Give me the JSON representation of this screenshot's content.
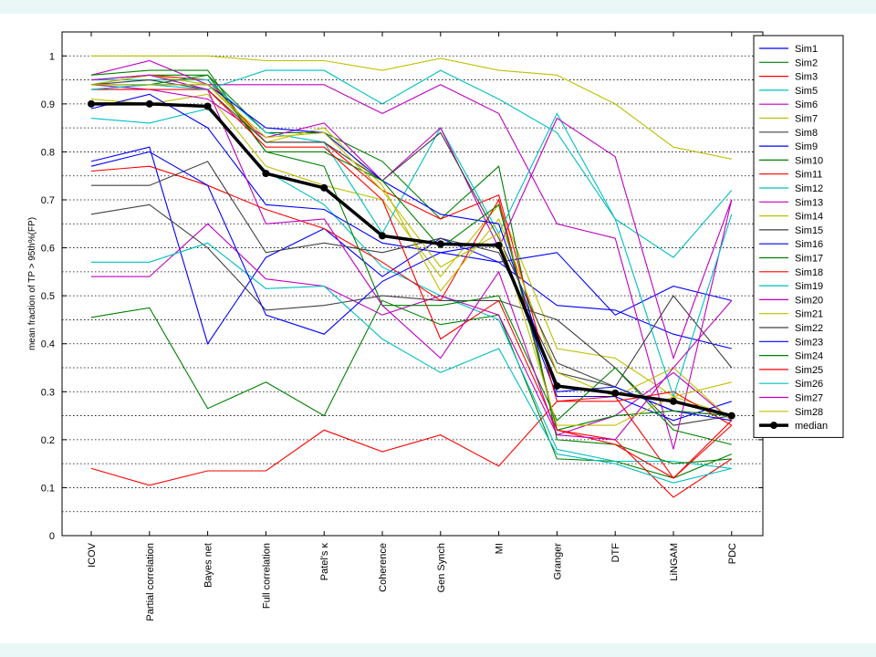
{
  "chart_data": {
    "type": "line",
    "title": "",
    "xlabel": "",
    "ylabel": "mean fraction of TP > 95th%(FP)",
    "ylim": [
      0,
      1.05
    ],
    "yticks": [
      0,
      0.1,
      0.2,
      0.3,
      0.4,
      0.5,
      0.6,
      0.7,
      0.8,
      0.9,
      1
    ],
    "grid": "dotted horizontal at 0.05 steps",
    "legend_position": "right",
    "categories": [
      "ICOV",
      "Partial correlation",
      "Bayes net",
      "Full correlation",
      "Patel's κ",
      "Coherence",
      "Gen Synch",
      "MI",
      "Granger",
      "DTF",
      "LiNGAM",
      "PDC"
    ],
    "series": [
      {
        "name": "Sim1",
        "color": "#0000ff",
        "values": [
          0.78,
          0.81,
          0.4,
          0.58,
          0.64,
          0.54,
          0.62,
          0.57,
          0.48,
          0.47,
          0.42,
          0.39
        ]
      },
      {
        "name": "Sim2",
        "color": "#008000",
        "values": [
          0.455,
          0.475,
          0.265,
          0.32,
          0.25,
          0.49,
          0.44,
          0.46,
          0.16,
          0.155,
          0.12,
          0.17
        ]
      },
      {
        "name": "Sim3",
        "color": "#ff0000",
        "values": [
          0.14,
          0.105,
          0.135,
          0.135,
          0.22,
          0.175,
          0.21,
          0.145,
          0.28,
          0.29,
          0.12,
          0.23
        ]
      },
      {
        "name": "Sim5",
        "color": "#00bfbf",
        "values": [
          0.87,
          0.86,
          0.89,
          0.76,
          0.69,
          0.56,
          0.5,
          0.45,
          0.18,
          0.155,
          0.155,
          0.14
        ]
      },
      {
        "name": "Sim6",
        "color": "#bf00bf",
        "values": [
          0.54,
          0.54,
          0.65,
          0.535,
          0.52,
          0.46,
          0.5,
          0.46,
          0.21,
          0.25,
          0.34,
          0.24
        ]
      },
      {
        "name": "Sim7",
        "color": "#bfbf00",
        "values": [
          0.91,
          0.9,
          0.92,
          0.77,
          0.73,
          0.7,
          0.54,
          0.69,
          0.39,
          0.37,
          0.29,
          0.25
        ]
      },
      {
        "name": "Sim8",
        "color": "#404040",
        "values": [
          0.67,
          0.69,
          0.6,
          0.47,
          0.48,
          0.5,
          0.49,
          0.49,
          0.45,
          0.35,
          0.23,
          0.25
        ]
      },
      {
        "name": "Sim9",
        "color": "#0000ff",
        "values": [
          0.89,
          0.92,
          0.85,
          0.69,
          0.68,
          0.61,
          0.59,
          0.57,
          0.59,
          0.46,
          0.52,
          0.49
        ]
      },
      {
        "name": "Sim10",
        "color": "#008000",
        "values": [
          0.95,
          0.96,
          0.96,
          0.84,
          0.84,
          0.78,
          0.66,
          0.77,
          0.2,
          0.19,
          0.15,
          0.16
        ]
      },
      {
        "name": "Sim11",
        "color": "#ff0000",
        "values": [
          0.76,
          0.77,
          0.73,
          0.68,
          0.64,
          0.57,
          0.49,
          0.7,
          0.22,
          0.2,
          0.08,
          0.16
        ]
      },
      {
        "name": "Sim12",
        "color": "#00bfbf",
        "values": [
          0.57,
          0.57,
          0.61,
          0.515,
          0.52,
          0.41,
          0.34,
          0.39,
          0.17,
          0.15,
          0.11,
          0.14
        ]
      },
      {
        "name": "Sim13",
        "color": "#bf00bf",
        "values": [
          0.96,
          0.99,
          0.94,
          0.94,
          0.94,
          0.88,
          0.94,
          0.88,
          0.65,
          0.62,
          0.18,
          0.7
        ]
      },
      {
        "name": "Sim14",
        "color": "#bfbf00",
        "values": [
          1.0,
          1.0,
          1.0,
          0.99,
          0.99,
          0.97,
          0.995,
          0.97,
          0.96,
          0.9,
          0.81,
          0.785
        ]
      },
      {
        "name": "Sim15",
        "color": "#404040",
        "values": [
          0.73,
          0.73,
          0.78,
          0.59,
          0.61,
          0.59,
          0.62,
          0.59,
          0.34,
          0.31,
          0.5,
          0.35
        ]
      },
      {
        "name": "Sim16",
        "color": "#0000ff",
        "values": [
          0.77,
          0.8,
          0.73,
          0.46,
          0.42,
          0.53,
          0.59,
          0.61,
          0.29,
          0.29,
          0.24,
          0.28
        ]
      },
      {
        "name": "Sim17",
        "color": "#008000",
        "values": [
          0.96,
          0.97,
          0.97,
          0.8,
          0.77,
          0.48,
          0.48,
          0.5,
          0.24,
          0.35,
          0.22,
          0.19
        ]
      },
      {
        "name": "Sim18",
        "color": "#ff0000",
        "values": [
          0.94,
          0.96,
          0.95,
          0.82,
          0.82,
          0.72,
          0.66,
          0.71,
          0.28,
          0.28,
          0.3,
          0.23
        ]
      },
      {
        "name": "Sim19",
        "color": "#00bfbf",
        "values": [
          0.95,
          0.95,
          0.95,
          0.84,
          0.82,
          0.63,
          0.85,
          0.63,
          0.88,
          0.66,
          0.58,
          0.72
        ]
      },
      {
        "name": "Sim20",
        "color": "#bf00bf",
        "values": [
          0.94,
          0.93,
          0.91,
          0.83,
          0.86,
          0.74,
          0.85,
          0.6,
          0.87,
          0.79,
          0.37,
          0.7
        ]
      },
      {
        "name": "Sim21",
        "color": "#bfbf00",
        "values": [
          0.94,
          0.96,
          0.94,
          0.82,
          0.85,
          0.73,
          0.51,
          0.66,
          0.34,
          0.29,
          0.35,
          0.24
        ]
      },
      {
        "name": "Sim22",
        "color": "#404040",
        "values": [
          0.94,
          0.95,
          0.93,
          0.82,
          0.82,
          0.74,
          0.84,
          0.62,
          0.36,
          0.31,
          0.26,
          0.25
        ]
      },
      {
        "name": "Sim23",
        "color": "#0000ff",
        "values": [
          0.93,
          0.94,
          0.94,
          0.85,
          0.84,
          0.74,
          0.67,
          0.65,
          0.3,
          0.31,
          0.26,
          0.24
        ]
      },
      {
        "name": "Sim24",
        "color": "#008000",
        "values": [
          0.94,
          0.94,
          0.96,
          0.8,
          0.8,
          0.74,
          0.6,
          0.69,
          0.22,
          0.25,
          0.26,
          0.25
        ]
      },
      {
        "name": "Sim25",
        "color": "#ff0000",
        "values": [
          0.93,
          0.93,
          0.93,
          0.81,
          0.81,
          0.7,
          0.41,
          0.49,
          0.22,
          0.19,
          0.12,
          0.24
        ]
      },
      {
        "name": "Sim26",
        "color": "#00bfbf",
        "values": [
          0.93,
          0.94,
          0.93,
          0.97,
          0.97,
          0.9,
          0.97,
          0.91,
          0.84,
          0.66,
          0.29,
          0.67
        ]
      },
      {
        "name": "Sim27",
        "color": "#bf00bf",
        "values": [
          0.95,
          0.96,
          0.93,
          0.65,
          0.66,
          0.48,
          0.37,
          0.55,
          0.21,
          0.2,
          0.35,
          0.49
        ]
      },
      {
        "name": "Sim28",
        "color": "#bfbf00",
        "values": [
          0.94,
          0.94,
          0.94,
          0.83,
          0.84,
          0.72,
          0.56,
          0.63,
          0.23,
          0.23,
          0.29,
          0.32
        ]
      }
    ],
    "median": {
      "name": "median",
      "color": "#000000",
      "values": [
        0.9,
        0.9,
        0.895,
        0.755,
        0.725,
        0.625,
        0.608,
        0.605,
        0.312,
        0.297,
        0.28,
        0.25
      ]
    }
  }
}
